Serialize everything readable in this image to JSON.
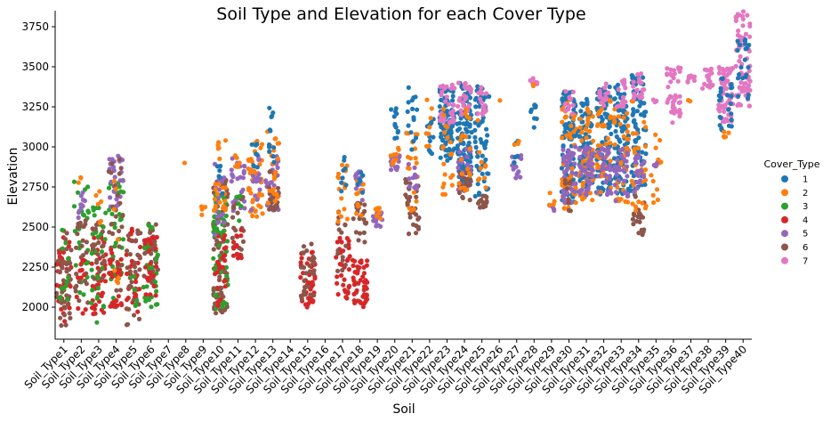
{
  "chart_data": {
    "type": "scatter",
    "subtype": "swarm",
    "title": "Soil Type and Elevation for each Cover Type",
    "xlabel": "Soil",
    "ylabel": "Elevation",
    "ylim": [
      1800,
      3850
    ],
    "yticks": [
      2000,
      2250,
      2500,
      2750,
      3000,
      3250,
      3500,
      3750
    ],
    "grid": false,
    "legend": {
      "title": "Cover_Type",
      "placement": "right",
      "entries": [
        {
          "name": "1",
          "color": "#1f77b4"
        },
        {
          "name": "2",
          "color": "#ff7f0e"
        },
        {
          "name": "3",
          "color": "#2ca02c"
        },
        {
          "name": "4",
          "color": "#d62728"
        },
        {
          "name": "5",
          "color": "#9467bd"
        },
        {
          "name": "6",
          "color": "#8c564b"
        },
        {
          "name": "7",
          "color": "#e377c2"
        }
      ]
    },
    "categories": [
      "Soil_Type1",
      "Soil_Type2",
      "Soil_Type3",
      "Soil_Type4",
      "Soil_Type5",
      "Soil_Type6",
      "Soil_Type7",
      "Soil_Type8",
      "Soil_Type9",
      "Soil_Type10",
      "Soil_Type11",
      "Soil_Type12",
      "Soil_Type13",
      "Soil_Type14",
      "Soil_Type15",
      "Soil_Type16",
      "Soil_Type17",
      "Soil_Type18",
      "Soil_Type19",
      "Soil_Type20",
      "Soil_Type21",
      "Soil_Type22",
      "Soil_Type23",
      "Soil_Type24",
      "Soil_Type25",
      "Soil_Type26",
      "Soil_Type27",
      "Soil_Type28",
      "Soil_Type29",
      "Soil_Type30",
      "Soil_Type31",
      "Soil_Type32",
      "Soil_Type33",
      "Soil_Type34",
      "Soil_Type35",
      "Soil_Type36",
      "Soil_Type37",
      "Soil_Type38",
      "Soil_Type39",
      "Soil_Type40"
    ],
    "distributions": [
      {
        "soil": "Soil_Type1",
        "groups": [
          {
            "cover": "4",
            "min": 1900,
            "max": 2450,
            "n": 40
          },
          {
            "cover": "6",
            "min": 1880,
            "max": 2480,
            "n": 40
          },
          {
            "cover": "3",
            "min": 2000,
            "max": 2520,
            "n": 12
          }
        ]
      },
      {
        "soil": "Soil_Type2",
        "groups": [
          {
            "cover": "3",
            "min": 2060,
            "max": 2800,
            "n": 30
          },
          {
            "cover": "6",
            "min": 2000,
            "max": 2650,
            "n": 25
          },
          {
            "cover": "5",
            "min": 2550,
            "max": 2720,
            "n": 10
          },
          {
            "cover": "4",
            "min": 1950,
            "max": 2300,
            "n": 12
          },
          {
            "cover": "2",
            "min": 2750,
            "max": 2810,
            "n": 3
          }
        ]
      },
      {
        "soil": "Soil_Type3",
        "groups": [
          {
            "cover": "4",
            "min": 1950,
            "max": 2550,
            "n": 45
          },
          {
            "cover": "3",
            "min": 1900,
            "max": 2650,
            "n": 30
          },
          {
            "cover": "6",
            "min": 2150,
            "max": 2550,
            "n": 20
          },
          {
            "cover": "2",
            "min": 2500,
            "max": 2750,
            "n": 6
          }
        ]
      },
      {
        "soil": "Soil_Type4",
        "groups": [
          {
            "cover": "3",
            "min": 2050,
            "max": 2800,
            "n": 35
          },
          {
            "cover": "5",
            "min": 2600,
            "max": 2950,
            "n": 30
          },
          {
            "cover": "6",
            "min": 2000,
            "max": 2950,
            "n": 30
          },
          {
            "cover": "4",
            "min": 2000,
            "max": 2400,
            "n": 25
          },
          {
            "cover": "2",
            "min": 2100,
            "max": 2850,
            "n": 8
          }
        ]
      },
      {
        "soil": "Soil_Type5",
        "groups": [
          {
            "cover": "4",
            "min": 1950,
            "max": 2500,
            "n": 35
          },
          {
            "cover": "6",
            "min": 1880,
            "max": 2480,
            "n": 30
          },
          {
            "cover": "3",
            "min": 2000,
            "max": 2200,
            "n": 6
          }
        ]
      },
      {
        "soil": "Soil_Type6",
        "groups": [
          {
            "cover": "6",
            "min": 2150,
            "max": 2550,
            "n": 35
          },
          {
            "cover": "3",
            "min": 2000,
            "max": 2550,
            "n": 30
          },
          {
            "cover": "4",
            "min": 2000,
            "max": 2450,
            "n": 25
          }
        ]
      },
      {
        "soil": "Soil_Type7",
        "groups": []
      },
      {
        "soil": "Soil_Type8",
        "groups": [
          {
            "cover": "2",
            "min": 2900,
            "max": 2900,
            "n": 1
          }
        ]
      },
      {
        "soil": "Soil_Type9",
        "groups": [
          {
            "cover": "2",
            "min": 2570,
            "max": 2630,
            "n": 4
          }
        ]
      },
      {
        "soil": "Soil_Type10",
        "groups": [
          {
            "cover": "6",
            "min": 1950,
            "max": 2850,
            "n": 80
          },
          {
            "cover": "3",
            "min": 1930,
            "max": 2700,
            "n": 60
          },
          {
            "cover": "4",
            "min": 2000,
            "max": 2450,
            "n": 25
          },
          {
            "cover": "5",
            "min": 2450,
            "max": 2900,
            "n": 20
          },
          {
            "cover": "2",
            "min": 2550,
            "max": 3050,
            "n": 25
          },
          {
            "cover": "1",
            "min": 2700,
            "max": 2900,
            "n": 6
          }
        ]
      },
      {
        "soil": "Soil_Type11",
        "groups": [
          {
            "cover": "5",
            "min": 2550,
            "max": 2950,
            "n": 25
          },
          {
            "cover": "6",
            "min": 2300,
            "max": 2700,
            "n": 20
          },
          {
            "cover": "4",
            "min": 2300,
            "max": 2500,
            "n": 12
          },
          {
            "cover": "3",
            "min": 2500,
            "max": 2700,
            "n": 6
          },
          {
            "cover": "2",
            "min": 2850,
            "max": 2950,
            "n": 6
          }
        ]
      },
      {
        "soil": "Soil_Type12",
        "groups": [
          {
            "cover": "2",
            "min": 2560,
            "max": 3050,
            "n": 45
          },
          {
            "cover": "5",
            "min": 2600,
            "max": 2950,
            "n": 15
          },
          {
            "cover": "1",
            "min": 2850,
            "max": 3050,
            "n": 8
          }
        ]
      },
      {
        "soil": "Soil_Type13",
        "groups": [
          {
            "cover": "5",
            "min": 2600,
            "max": 2950,
            "n": 30
          },
          {
            "cover": "6",
            "min": 2600,
            "max": 2850,
            "n": 20
          },
          {
            "cover": "2",
            "min": 2650,
            "max": 3100,
            "n": 25
          },
          {
            "cover": "1",
            "min": 2900,
            "max": 3280,
            "n": 12
          }
        ]
      },
      {
        "soil": "Soil_Type14",
        "groups": []
      },
      {
        "soil": "Soil_Type15",
        "groups": [
          {
            "cover": "4",
            "min": 2000,
            "max": 2350,
            "n": 50
          },
          {
            "cover": "6",
            "min": 2050,
            "max": 2400,
            "n": 25
          }
        ]
      },
      {
        "soil": "Soil_Type16",
        "groups": []
      },
      {
        "soil": "Soil_Type17",
        "groups": [
          {
            "cover": "4",
            "min": 2050,
            "max": 2450,
            "n": 35
          },
          {
            "cover": "6",
            "min": 2200,
            "max": 2600,
            "n": 15
          },
          {
            "cover": "2",
            "min": 2500,
            "max": 2900,
            "n": 15
          },
          {
            "cover": "1",
            "min": 2650,
            "max": 2950,
            "n": 8
          }
        ]
      },
      {
        "soil": "Soil_Type18",
        "groups": [
          {
            "cover": "4",
            "min": 2000,
            "max": 2300,
            "n": 50
          },
          {
            "cover": "6",
            "min": 2400,
            "max": 2650,
            "n": 25
          },
          {
            "cover": "5",
            "min": 2650,
            "max": 2850,
            "n": 15
          },
          {
            "cover": "2",
            "min": 2550,
            "max": 2800,
            "n": 10
          },
          {
            "cover": "1",
            "min": 2700,
            "max": 2850,
            "n": 6
          }
        ]
      },
      {
        "soil": "Soil_Type19",
        "groups": [
          {
            "cover": "5",
            "min": 2500,
            "max": 2600,
            "n": 15
          },
          {
            "cover": "2",
            "min": 2550,
            "max": 2620,
            "n": 8
          }
        ]
      },
      {
        "soil": "Soil_Type20",
        "groups": [
          {
            "cover": "5",
            "min": 2850,
            "max": 2950,
            "n": 15
          },
          {
            "cover": "2",
            "min": 2850,
            "max": 3000,
            "n": 10
          },
          {
            "cover": "1",
            "min": 3050,
            "max": 3250,
            "n": 12
          }
        ]
      },
      {
        "soil": "Soil_Type21",
        "groups": [
          {
            "cover": "6",
            "min": 2450,
            "max": 2800,
            "n": 30
          },
          {
            "cover": "2",
            "min": 2600,
            "max": 3100,
            "n": 20
          },
          {
            "cover": "5",
            "min": 2700,
            "max": 2900,
            "n": 12
          },
          {
            "cover": "1",
            "min": 2950,
            "max": 3370,
            "n": 15
          }
        ]
      },
      {
        "soil": "Soil_Type22",
        "groups": [
          {
            "cover": "1",
            "min": 2900,
            "max": 3300,
            "n": 12
          },
          {
            "cover": "2",
            "min": 3000,
            "max": 3300,
            "n": 8
          }
        ]
      },
      {
        "soil": "Soil_Type23",
        "groups": [
          {
            "cover": "1",
            "min": 2900,
            "max": 3380,
            "n": 90
          },
          {
            "cover": "7",
            "min": 3150,
            "max": 3400,
            "n": 30
          },
          {
            "cover": "2",
            "min": 2650,
            "max": 3250,
            "n": 20
          }
        ]
      },
      {
        "soil": "Soil_Type24",
        "groups": [
          {
            "cover": "1",
            "min": 2750,
            "max": 3400,
            "n": 110
          },
          {
            "cover": "5",
            "min": 2700,
            "max": 3000,
            "n": 25
          },
          {
            "cover": "6",
            "min": 2650,
            "max": 2850,
            "n": 20
          },
          {
            "cover": "7",
            "min": 3200,
            "max": 3400,
            "n": 25
          },
          {
            "cover": "2",
            "min": 2700,
            "max": 3250,
            "n": 20
          }
        ]
      },
      {
        "soil": "Soil_Type25",
        "groups": [
          {
            "cover": "1",
            "min": 2650,
            "max": 3380,
            "n": 60
          },
          {
            "cover": "6",
            "min": 2620,
            "max": 2700,
            "n": 15
          },
          {
            "cover": "7",
            "min": 3200,
            "max": 3380,
            "n": 15
          },
          {
            "cover": "2",
            "min": 2700,
            "max": 3200,
            "n": 10
          }
        ]
      },
      {
        "soil": "Soil_Type26",
        "groups": [
          {
            "cover": "2",
            "min": 3290,
            "max": 3290,
            "n": 1
          }
        ]
      },
      {
        "soil": "Soil_Type27",
        "groups": [
          {
            "cover": "5",
            "min": 2800,
            "max": 2950,
            "n": 15
          },
          {
            "cover": "1",
            "min": 2880,
            "max": 3050,
            "n": 6
          },
          {
            "cover": "2",
            "min": 3000,
            "max": 3050,
            "n": 3
          }
        ]
      },
      {
        "soil": "Soil_Type28",
        "groups": [
          {
            "cover": "7",
            "min": 3390,
            "max": 3430,
            "n": 8
          },
          {
            "cover": "1",
            "min": 3100,
            "max": 3300,
            "n": 10
          },
          {
            "cover": "2",
            "min": 3380,
            "max": 3420,
            "n": 3
          }
        ]
      },
      {
        "soil": "Soil_Type29",
        "groups": [
          {
            "cover": "5",
            "min": 2600,
            "max": 2650,
            "n": 5
          },
          {
            "cover": "2",
            "min": 2600,
            "max": 2900,
            "n": 4
          }
        ]
      },
      {
        "soil": "Soil_Type30",
        "groups": [
          {
            "cover": "1",
            "min": 2650,
            "max": 3350,
            "n": 100
          },
          {
            "cover": "2",
            "min": 2600,
            "max": 3300,
            "n": 50
          },
          {
            "cover": "5",
            "min": 2650,
            "max": 3000,
            "n": 40
          },
          {
            "cover": "6",
            "min": 2600,
            "max": 2800,
            "n": 10
          },
          {
            "cover": "7",
            "min": 3200,
            "max": 3350,
            "n": 12
          }
        ]
      },
      {
        "soil": "Soil_Type31",
        "groups": [
          {
            "cover": "1",
            "min": 2700,
            "max": 3300,
            "n": 80
          },
          {
            "cover": "2",
            "min": 2650,
            "max": 3250,
            "n": 50
          },
          {
            "cover": "5",
            "min": 2700,
            "max": 3000,
            "n": 40
          }
        ]
      },
      {
        "soil": "Soil_Type32",
        "groups": [
          {
            "cover": "1",
            "min": 2700,
            "max": 3400,
            "n": 90
          },
          {
            "cover": "2",
            "min": 2700,
            "max": 3300,
            "n": 40
          },
          {
            "cover": "5",
            "min": 2700,
            "max": 3000,
            "n": 30
          },
          {
            "cover": "7",
            "min": 3250,
            "max": 3400,
            "n": 15
          }
        ]
      },
      {
        "soil": "Soil_Type33",
        "groups": [
          {
            "cover": "1",
            "min": 2700,
            "max": 3400,
            "n": 90
          },
          {
            "cover": "2",
            "min": 2650,
            "max": 3300,
            "n": 40
          },
          {
            "cover": "5",
            "min": 2650,
            "max": 3000,
            "n": 30
          },
          {
            "cover": "7",
            "min": 3250,
            "max": 3420,
            "n": 15
          }
        ]
      },
      {
        "soil": "Soil_Type34",
        "groups": [
          {
            "cover": "1",
            "min": 2700,
            "max": 3450,
            "n": 80
          },
          {
            "cover": "6",
            "min": 2450,
            "max": 2700,
            "n": 20
          },
          {
            "cover": "2",
            "min": 2600,
            "max": 3300,
            "n": 30
          },
          {
            "cover": "7",
            "min": 3300,
            "max": 3460,
            "n": 20
          },
          {
            "cover": "5",
            "min": 2700,
            "max": 2950,
            "n": 20
          }
        ]
      },
      {
        "soil": "Soil_Type35",
        "groups": [
          {
            "cover": "2",
            "min": 2650,
            "max": 3100,
            "n": 15
          },
          {
            "cover": "7",
            "min": 3280,
            "max": 3300,
            "n": 4
          },
          {
            "cover": "5",
            "min": 2880,
            "max": 2900,
            "n": 3
          }
        ]
      },
      {
        "soil": "Soil_Type36",
        "groups": [
          {
            "cover": "7",
            "min": 3150,
            "max": 3520,
            "n": 40
          }
        ]
      },
      {
        "soil": "Soil_Type37",
        "groups": [
          {
            "cover": "7",
            "min": 3400,
            "max": 3450,
            "n": 8
          },
          {
            "cover": "2",
            "min": 3280,
            "max": 3300,
            "n": 2
          }
        ]
      },
      {
        "soil": "Soil_Type38",
        "groups": [
          {
            "cover": "7",
            "min": 3350,
            "max": 3490,
            "n": 20
          }
        ]
      },
      {
        "soil": "Soil_Type39",
        "groups": [
          {
            "cover": "7",
            "min": 3150,
            "max": 3500,
            "n": 60
          },
          {
            "cover": "1",
            "min": 3100,
            "max": 3450,
            "n": 25
          },
          {
            "cover": "2",
            "min": 3060,
            "max": 3100,
            "n": 5
          }
        ]
      },
      {
        "soil": "Soil_Type40",
        "groups": [
          {
            "cover": "7",
            "min": 3250,
            "max": 3850,
            "n": 70
          },
          {
            "cover": "1",
            "min": 3250,
            "max": 3700,
            "n": 20
          }
        ]
      }
    ]
  }
}
